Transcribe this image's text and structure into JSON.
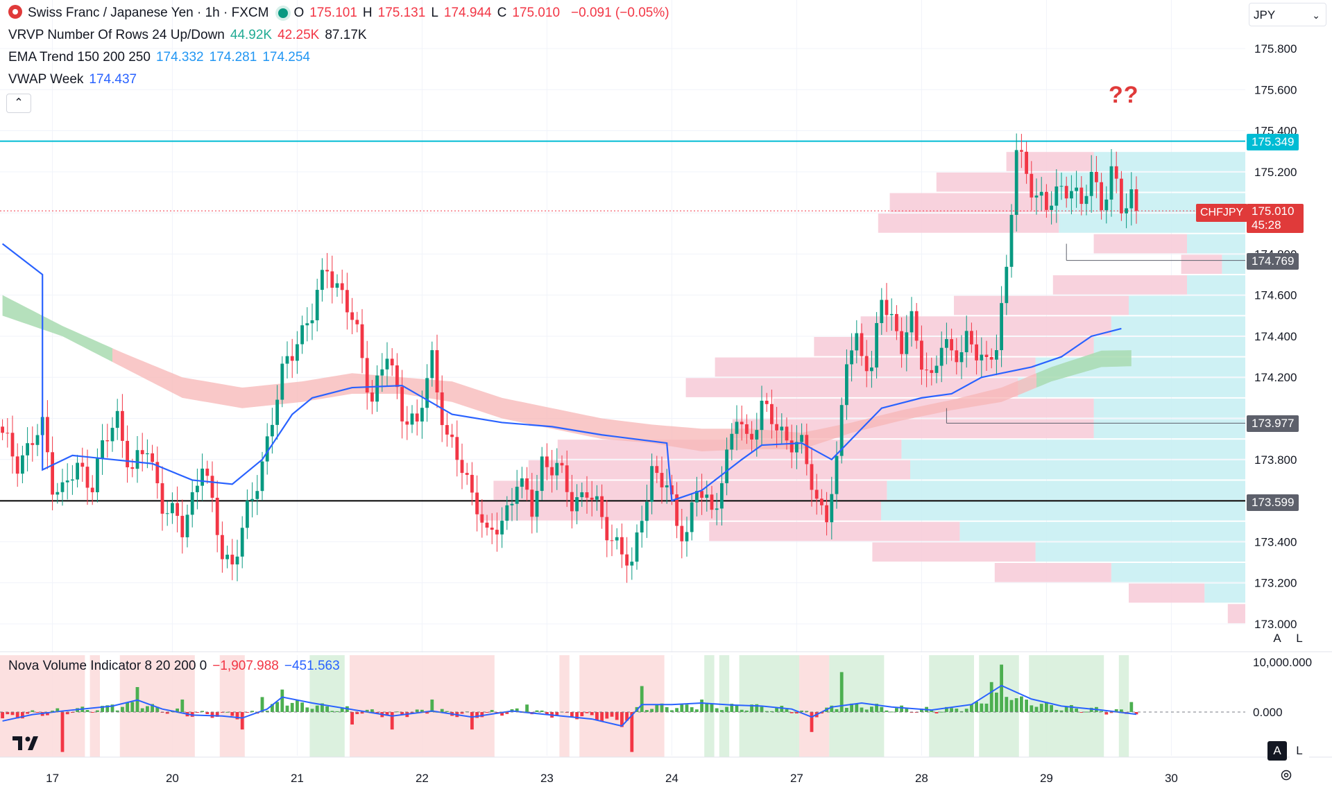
{
  "header": {
    "symbol_title": "Swiss Franc / Japanese Yen · 1h · FXCM",
    "ohlc": [
      {
        "key": "O",
        "value": "175.101"
      },
      {
        "key": "H",
        "value": "175.131"
      },
      {
        "key": "L",
        "value": "174.944"
      },
      {
        "key": "C",
        "value": "175.010"
      }
    ],
    "change": "−0.091 (−0.05%)"
  },
  "indicators": {
    "vrvp": {
      "label": "VRVP Number Of Rows 24 Up/Down",
      "up": "44.92K",
      "down": "42.25K",
      "total": "87.17K"
    },
    "ema": {
      "label": "EMA Trend 150 200 250",
      "v1": "174.332",
      "v2": "174.281",
      "v3": "174.254"
    },
    "vwap": {
      "label": "VWAP Week",
      "value": "174.437"
    },
    "nova": {
      "label": "Nova Volume Indicator 8 20 200 0",
      "v1": "−1,907.988",
      "v2": "−451.563"
    }
  },
  "toolbar": {
    "collapse_icon": "chevron-up-icon",
    "currency": "JPY",
    "currency_icon": "chevron-down-icon",
    "auto_label": "A",
    "log_label": "L"
  },
  "annotation": {
    "text": "??"
  },
  "price_badges": {
    "resistance": "175.349",
    "symbol": "CHFJPY",
    "last": "175.010",
    "countdown": "45:28",
    "low_swing": "174.769",
    "mid_support": "173.977",
    "support": "173.599"
  },
  "colors": {
    "up": "#089981",
    "down": "#f23645",
    "vwap": "#2962ff",
    "resistance": "#00bcd4",
    "support": "#000000",
    "ema_band_bear": "#f7b5b5",
    "ema_band_bull": "#a8dbb0"
  },
  "chart_data": {
    "type": "candlestick",
    "symbol": "CHFJPY",
    "interval": "1h",
    "y_axis": {
      "min": 173.0,
      "max": 175.9,
      "ticks": [
        "175.800",
        "175.600",
        "175.400",
        "175.200",
        "174.800",
        "174.600",
        "174.400",
        "174.200",
        "173.800",
        "173.400",
        "173.200",
        "173.000"
      ]
    },
    "x_axis": {
      "labels": [
        {
          "label": "17",
          "bar": 10
        },
        {
          "label": "20",
          "bar": 34
        },
        {
          "label": "21",
          "bar": 59
        },
        {
          "label": "22",
          "bar": 84
        },
        {
          "label": "23",
          "bar": 109
        },
        {
          "label": "24",
          "bar": 134
        },
        {
          "label": "27",
          "bar": 159
        },
        {
          "label": "28",
          "bar": 184
        },
        {
          "label": "29",
          "bar": 209
        },
        {
          "label": "30",
          "bar": 234
        }
      ]
    },
    "levels": [
      {
        "name": "resistance",
        "price": 175.349
      },
      {
        "name": "support",
        "price": 173.599
      },
      {
        "name": "mid_support",
        "price": 173.977,
        "from_bar": 189
      },
      {
        "name": "low_swing",
        "price": 174.769,
        "from_bar": 213
      }
    ],
    "anchors": [
      [
        0,
        173.9
      ],
      [
        3,
        173.8
      ],
      [
        5,
        173.85
      ],
      [
        8,
        173.95
      ],
      [
        10,
        173.7
      ],
      [
        12,
        173.65
      ],
      [
        15,
        173.75
      ],
      [
        18,
        173.7
      ],
      [
        20,
        173.85
      ],
      [
        23,
        174.0
      ],
      [
        26,
        173.75
      ],
      [
        29,
        173.85
      ],
      [
        32,
        173.6
      ],
      [
        36,
        173.45
      ],
      [
        40,
        173.8
      ],
      [
        42,
        173.55
      ],
      [
        44,
        173.35
      ],
      [
        46,
        173.3
      ],
      [
        50,
        173.6
      ],
      [
        53,
        173.9
      ],
      [
        56,
        174.2
      ],
      [
        59,
        174.4
      ],
      [
        62,
        174.5
      ],
      [
        65,
        174.75
      ],
      [
        68,
        174.6
      ],
      [
        71,
        174.4
      ],
      [
        74,
        174.1
      ],
      [
        77,
        174.3
      ],
      [
        80,
        174.05
      ],
      [
        83,
        173.95
      ],
      [
        86,
        174.3
      ],
      [
        89,
        173.9
      ],
      [
        92,
        173.75
      ],
      [
        95,
        173.6
      ],
      [
        97,
        173.4
      ],
      [
        100,
        173.5
      ],
      [
        103,
        173.7
      ],
      [
        106,
        173.55
      ],
      [
        108,
        173.8
      ],
      [
        111,
        173.75
      ],
      [
        114,
        173.6
      ],
      [
        117,
        173.65
      ],
      [
        120,
        173.5
      ],
      [
        123,
        173.4
      ],
      [
        126,
        173.25
      ],
      [
        128,
        173.55
      ],
      [
        130,
        173.75
      ],
      [
        133,
        173.65
      ],
      [
        135,
        173.5
      ],
      [
        137,
        173.45
      ],
      [
        139,
        173.65
      ],
      [
        142,
        173.55
      ],
      [
        145,
        173.8
      ],
      [
        147,
        174.0
      ],
      [
        149,
        173.9
      ],
      [
        152,
        174.05
      ],
      [
        155,
        173.95
      ],
      [
        158,
        173.9
      ],
      [
        160,
        173.85
      ],
      [
        163,
        173.6
      ],
      [
        165,
        173.55
      ],
      [
        167,
        173.75
      ],
      [
        169,
        174.3
      ],
      [
        171,
        174.4
      ],
      [
        174,
        174.2
      ],
      [
        176,
        174.6
      ],
      [
        178,
        174.5
      ],
      [
        180,
        174.35
      ],
      [
        182,
        174.45
      ],
      [
        184,
        174.3
      ],
      [
        186,
        174.2
      ],
      [
        188,
        174.35
      ],
      [
        190,
        174.3
      ],
      [
        193,
        174.4
      ],
      [
        195,
        174.3
      ],
      [
        197,
        174.25
      ],
      [
        199,
        174.4
      ],
      [
        201,
        174.7
      ],
      [
        203,
        175.3
      ],
      [
        205,
        175.2
      ],
      [
        207,
        175.1
      ],
      [
        209,
        175.0
      ],
      [
        211,
        175.1
      ],
      [
        214,
        175.15
      ],
      [
        216,
        175.0
      ],
      [
        218,
        175.2
      ],
      [
        220,
        175.05
      ],
      [
        222,
        175.2
      ],
      [
        224,
        175.0
      ],
      [
        226,
        175.1
      ],
      [
        227,
        175.01
      ]
    ],
    "vwap_week": [
      [
        0,
        174.85
      ],
      [
        8,
        174.7
      ],
      [
        8,
        173.75
      ],
      [
        14,
        173.82
      ],
      [
        22,
        173.8
      ],
      [
        30,
        173.78
      ],
      [
        38,
        173.7
      ],
      [
        46,
        173.68
      ],
      [
        52,
        173.8
      ],
      [
        58,
        174.02
      ],
      [
        62,
        174.1
      ],
      [
        70,
        174.15
      ],
      [
        80,
        174.16
      ],
      [
        90,
        174.02
      ],
      [
        100,
        173.98
      ],
      [
        110,
        173.96
      ],
      [
        120,
        173.92
      ],
      [
        133,
        173.88
      ],
      [
        134,
        173.6
      ],
      [
        140,
        173.65
      ],
      [
        148,
        173.8
      ],
      [
        152,
        173.87
      ],
      [
        160,
        173.88
      ],
      [
        166,
        173.8
      ],
      [
        170,
        173.9
      ],
      [
        176,
        174.05
      ],
      [
        184,
        174.1
      ],
      [
        190,
        174.12
      ],
      [
        196,
        174.2
      ],
      [
        200,
        174.22
      ],
      [
        206,
        174.25
      ],
      [
        212,
        174.3
      ],
      [
        218,
        174.4
      ],
      [
        224,
        174.437
      ]
    ],
    "ema_band": [
      [
        0,
        174.6,
        174.5
      ],
      [
        12,
        174.45,
        174.4
      ],
      [
        24,
        174.32,
        174.25
      ],
      [
        36,
        174.2,
        174.1
      ],
      [
        48,
        174.15,
        174.05
      ],
      [
        60,
        174.18,
        174.08
      ],
      [
        70,
        174.22,
        174.12
      ],
      [
        80,
        174.2,
        174.12
      ],
      [
        90,
        174.18,
        174.08
      ],
      [
        100,
        174.1,
        174.0
      ],
      [
        110,
        174.05,
        173.95
      ],
      [
        120,
        174.0,
        173.9
      ],
      [
        130,
        173.97,
        173.88
      ],
      [
        140,
        173.95,
        173.84
      ],
      [
        150,
        173.95,
        173.85
      ],
      [
        160,
        173.93,
        173.85
      ],
      [
        170,
        173.98,
        173.93
      ],
      [
        180,
        174.04,
        173.99
      ],
      [
        190,
        174.09,
        174.04
      ],
      [
        200,
        174.15,
        174.08
      ],
      [
        210,
        174.25,
        174.18
      ],
      [
        220,
        174.33,
        174.25
      ],
      [
        226,
        174.332,
        174.254
      ]
    ],
    "ema_band_bull_until": 22,
    "ema_band_bull_from": 207,
    "volume_profile": [
      {
        "price_from": 175.2,
        "price_to": 175.3,
        "up": 520,
        "down": 300
      },
      {
        "price_from": 175.1,
        "price_to": 175.2,
        "up": 640,
        "down": 420
      },
      {
        "price_from": 175.0,
        "price_to": 175.1,
        "up": 660,
        "down": 560
      },
      {
        "price_from": 174.9,
        "price_to": 175.0,
        "up": 640,
        "down": 620
      },
      {
        "price_from": 174.8,
        "price_to": 174.9,
        "up": 200,
        "down": 320
      },
      {
        "price_from": 174.7,
        "price_to": 174.8,
        "up": 80,
        "down": 140
      },
      {
        "price_from": 174.6,
        "price_to": 174.7,
        "up": 200,
        "down": 460
      },
      {
        "price_from": 174.5,
        "price_to": 174.6,
        "up": 400,
        "down": 600
      },
      {
        "price_from": 174.4,
        "price_to": 174.5,
        "up": 460,
        "down": 860
      },
      {
        "price_from": 174.3,
        "price_to": 174.4,
        "up": 520,
        "down": 960
      },
      {
        "price_from": 174.2,
        "price_to": 174.3,
        "up": 720,
        "down": 1100
      },
      {
        "price_from": 174.1,
        "price_to": 174.2,
        "up": 780,
        "down": 1140
      },
      {
        "price_from": 174.0,
        "price_to": 174.1,
        "up": 520,
        "down": 1100
      },
      {
        "price_from": 173.9,
        "price_to": 174.0,
        "up": 520,
        "down": 1240
      },
      {
        "price_from": 173.8,
        "price_to": 173.9,
        "up": 1180,
        "down": 1180
      },
      {
        "price_from": 173.7,
        "price_to": 173.8,
        "up": 1150,
        "down": 1310
      },
      {
        "price_from": 173.6,
        "price_to": 173.7,
        "up": 1230,
        "down": 1350
      },
      {
        "price_from": 173.5,
        "price_to": 173.6,
        "up": 1250,
        "down": 1380
      },
      {
        "price_from": 173.4,
        "price_to": 173.5,
        "up": 980,
        "down": 860
      },
      {
        "price_from": 173.3,
        "price_to": 173.4,
        "up": 720,
        "down": 560
      },
      {
        "price_from": 173.2,
        "price_to": 173.3,
        "up": 460,
        "down": 400
      },
      {
        "price_from": 173.1,
        "price_to": 173.2,
        "up": 140,
        "down": 260
      },
      {
        "price_from": 173.0,
        "price_to": 173.1,
        "up": 0,
        "down": 60
      }
    ],
    "nova": {
      "y_axis_ticks": [
        "10,000.000",
        "0.000"
      ],
      "regimes": [
        {
          "from": 0,
          "to": 16,
          "state": "bear"
        },
        {
          "from": 18,
          "to": 19,
          "state": "bear"
        },
        {
          "from": 24,
          "to": 38,
          "state": "bear"
        },
        {
          "from": 44,
          "to": 48,
          "state": "bear"
        },
        {
          "from": 62,
          "to": 68,
          "state": "bull"
        },
        {
          "from": 70,
          "to": 98,
          "state": "bear"
        },
        {
          "from": 112,
          "to": 113,
          "state": "bear"
        },
        {
          "from": 116,
          "to": 132,
          "state": "bear"
        },
        {
          "from": 141,
          "to": 142,
          "state": "bull"
        },
        {
          "from": 144,
          "to": 145,
          "state": "bull"
        },
        {
          "from": 148,
          "to": 159,
          "state": "bull"
        },
        {
          "from": 160,
          "to": 165,
          "state": "bear"
        },
        {
          "from": 166,
          "to": 176,
          "state": "bull"
        },
        {
          "from": 186,
          "to": 194,
          "state": "bull"
        },
        {
          "from": 196,
          "to": 203,
          "state": "bull"
        },
        {
          "from": 206,
          "to": 220,
          "state": "bull"
        },
        {
          "from": 224,
          "to": 225,
          "state": "bull"
        }
      ],
      "spikes": [
        [
          12,
          -8000
        ],
        [
          22,
          1500
        ],
        [
          27,
          5000
        ],
        [
          36,
          2500
        ],
        [
          48,
          -3500
        ],
        [
          52,
          3000
        ],
        [
          56,
          4500
        ],
        [
          70,
          -2500
        ],
        [
          78,
          -3500
        ],
        [
          86,
          2500
        ],
        [
          94,
          -3500
        ],
        [
          105,
          1500
        ],
        [
          124,
          -3000
        ],
        [
          126,
          -8000
        ],
        [
          128,
          5200
        ],
        [
          137,
          1500
        ],
        [
          140,
          2500
        ],
        [
          150,
          1500
        ],
        [
          162,
          -4000
        ],
        [
          168,
          8000
        ],
        [
          176,
          1000
        ],
        [
          190,
          800
        ],
        [
          198,
          6000
        ],
        [
          200,
          9500
        ],
        [
          226,
          2000
        ]
      ],
      "smooth": [
        [
          0,
          -1800
        ],
        [
          6,
          -500
        ],
        [
          12,
          200
        ],
        [
          18,
          800
        ],
        [
          22,
          1200
        ],
        [
          27,
          2400
        ],
        [
          32,
          600
        ],
        [
          38,
          -600
        ],
        [
          44,
          -800
        ],
        [
          48,
          -1200
        ],
        [
          53,
          600
        ],
        [
          56,
          3000
        ],
        [
          62,
          1800
        ],
        [
          70,
          500
        ],
        [
          78,
          -800
        ],
        [
          86,
          200
        ],
        [
          94,
          -1000
        ],
        [
          102,
          200
        ],
        [
          110,
          -600
        ],
        [
          118,
          -1400
        ],
        [
          124,
          -2800
        ],
        [
          128,
          1500
        ],
        [
          134,
          1500
        ],
        [
          140,
          1800
        ],
        [
          146,
          1400
        ],
        [
          152,
          1200
        ],
        [
          158,
          600
        ],
        [
          162,
          -1000
        ],
        [
          166,
          1000
        ],
        [
          172,
          1800
        ],
        [
          178,
          1000
        ],
        [
          186,
          400
        ],
        [
          194,
          1500
        ],
        [
          200,
          5300
        ],
        [
          206,
          2600
        ],
        [
          212,
          1200
        ],
        [
          220,
          400
        ],
        [
          227,
          -451.563
        ]
      ]
    }
  }
}
